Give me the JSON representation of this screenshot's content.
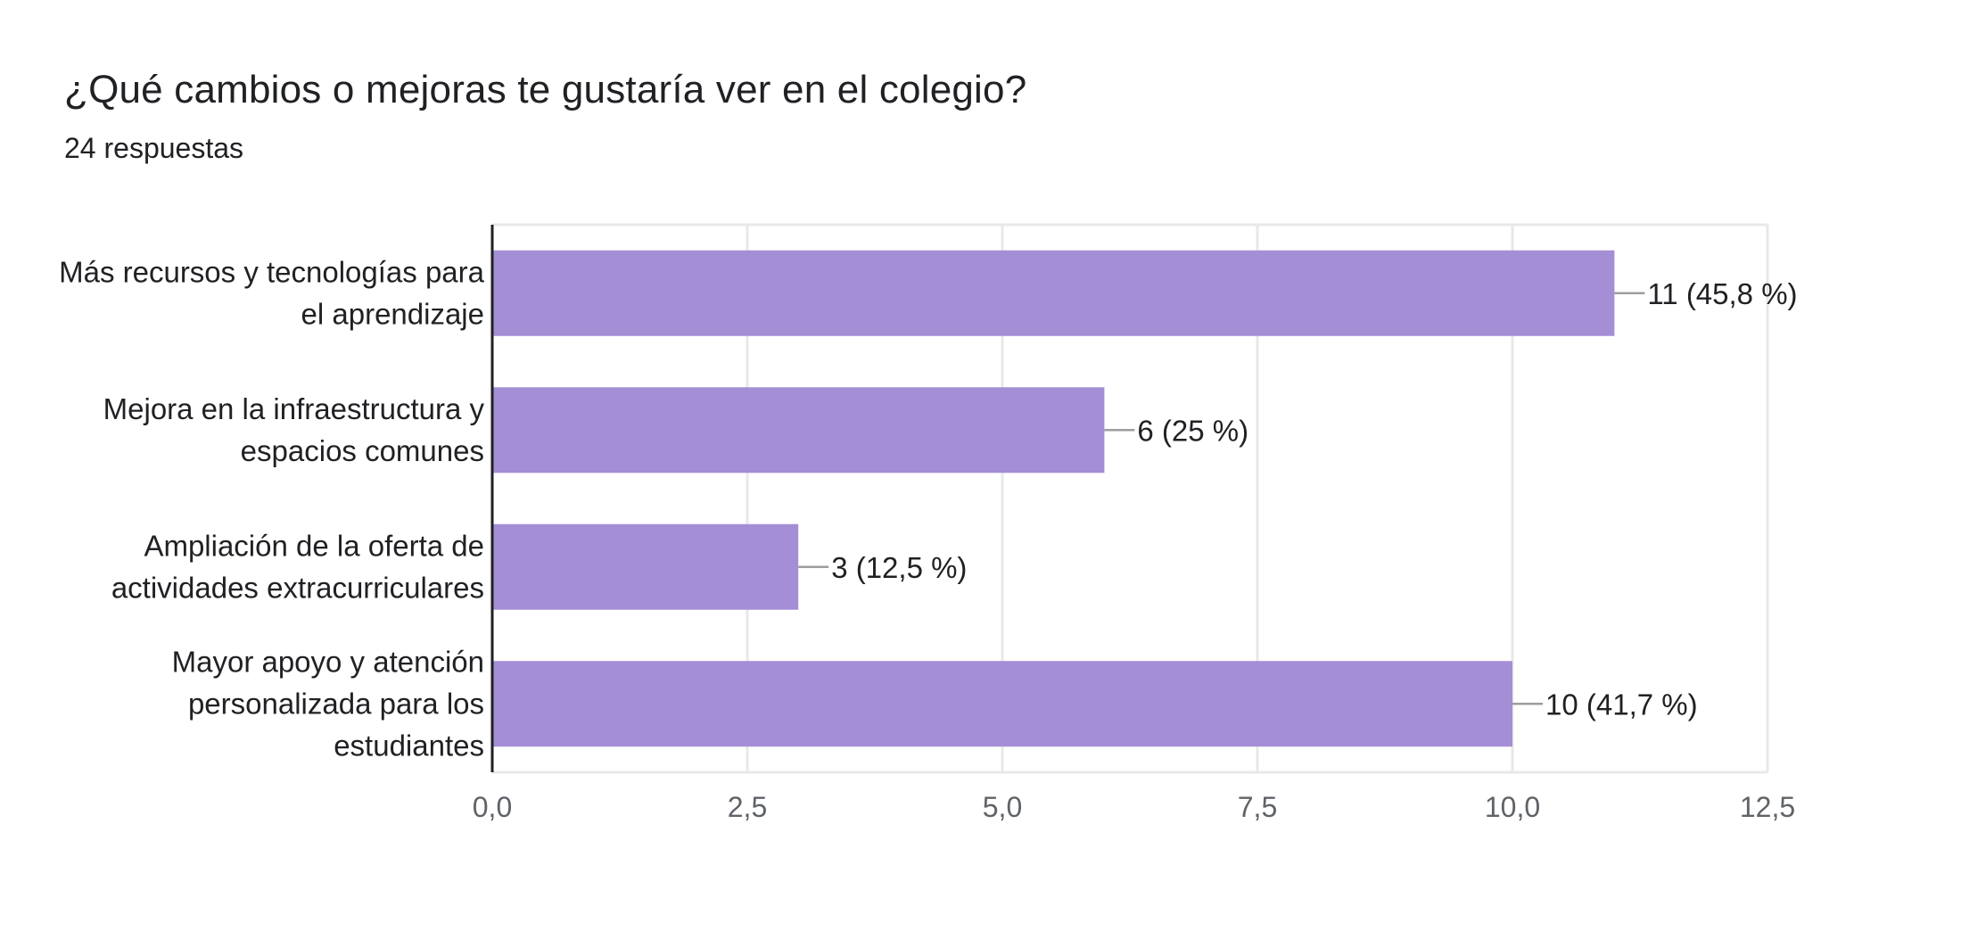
{
  "header": {
    "title": "¿Qué cambios o mejoras te gustaría ver en el colegio?",
    "responses": "24 respuestas"
  },
  "chart_data": {
    "type": "bar",
    "orientation": "horizontal",
    "categories": [
      [
        "Más recursos y tecnologías para",
        "el aprendizaje"
      ],
      [
        "Mejora en la infraestructura y",
        "espacios comunes"
      ],
      [
        "Ampliación de la oferta de",
        "actividades extracurriculares"
      ],
      [
        "Mayor apoyo y atención",
        "personalizada para los",
        "estudiantes"
      ]
    ],
    "values": [
      11,
      6,
      3,
      10
    ],
    "data_labels": [
      "11 (45,8 %)",
      "6 (25 %)",
      "3 (12,5 %)",
      "10 (41,7 %)"
    ],
    "x_ticks": [
      0,
      2.5,
      5,
      7.5,
      10,
      12.5
    ],
    "x_tick_labels": [
      "0,0",
      "2,5",
      "5,0",
      "7,5",
      "10,0",
      "12,5"
    ],
    "xlim": [
      0,
      12.5
    ],
    "grid": true,
    "colors": {
      "bar": "#a48ed6",
      "grid": "#e8e8e8",
      "axis": "#202124",
      "leader": "#9e9e9e",
      "tick_text": "#5f6368"
    }
  }
}
